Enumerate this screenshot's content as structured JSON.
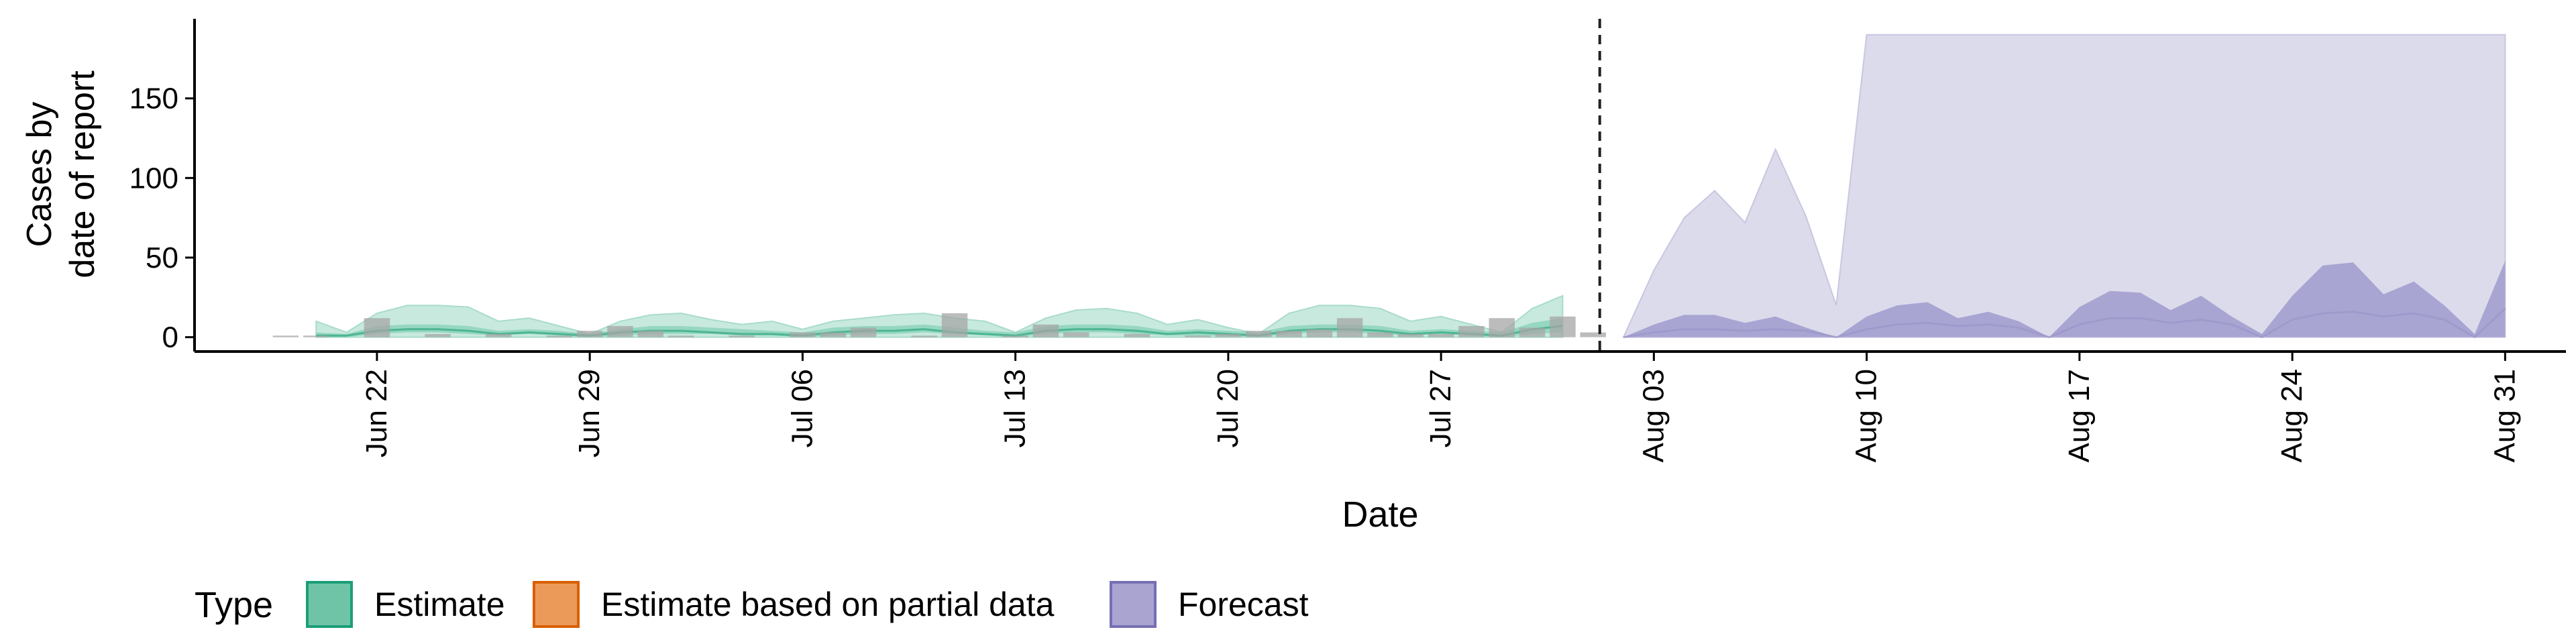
{
  "chart_data": {
    "type": "area",
    "xlabel": "Date",
    "ylabel_lines": [
      "Cases by",
      "date of report"
    ],
    "y_ticks": [
      0,
      50,
      100,
      150
    ],
    "y_range": [
      -9,
      200
    ],
    "x_range": [
      "2020-06-16",
      "2020-09-02"
    ],
    "x_ticks": [
      {
        "date": "2020-06-22",
        "label": "Jun 22"
      },
      {
        "date": "2020-06-29",
        "label": "Jun 29"
      },
      {
        "date": "2020-07-06",
        "label": "Jul 06"
      },
      {
        "date": "2020-07-13",
        "label": "Jul 13"
      },
      {
        "date": "2020-07-20",
        "label": "Jul 20"
      },
      {
        "date": "2020-07-27",
        "label": "Jul 27"
      },
      {
        "date": "2020-08-03",
        "label": "Aug 03"
      },
      {
        "date": "2020-08-10",
        "label": "Aug 10"
      },
      {
        "date": "2020-08-17",
        "label": "Aug 17"
      },
      {
        "date": "2020-08-24",
        "label": "Aug 24"
      },
      {
        "date": "2020-08-31",
        "label": "Aug 31"
      }
    ],
    "forecast_start_marker": "2020-08-01",
    "legend": {
      "position": "bottom",
      "title": "Type",
      "items": [
        {
          "label": "Estimate",
          "fill": "#6fc4a8",
          "stroke": "#1b9e77"
        },
        {
          "label": "Estimate based on partial data",
          "fill": "#ec9a5a",
          "stroke": "#d95f02"
        },
        {
          "label": "Forecast",
          "fill": "#a9a4d0",
          "stroke": "#7570b3"
        }
      ]
    },
    "colors": {
      "estimate_outer": "#c8e9de",
      "estimate_inner": "#8dd3bb",
      "estimate_line": "#1b9e77",
      "forecast_outer": "#dcdbeb",
      "forecast_inner": "#a9a5d2",
      "observed": "#a6a6a6"
    },
    "series": [
      {
        "name": "Estimate",
        "dates": [
          "2020-06-20",
          "2020-06-21",
          "2020-06-22",
          "2020-06-23",
          "2020-06-24",
          "2020-06-25",
          "2020-06-26",
          "2020-06-27",
          "2020-06-28",
          "2020-06-29",
          "2020-06-30",
          "2020-07-01",
          "2020-07-02",
          "2020-07-03",
          "2020-07-04",
          "2020-07-05",
          "2020-07-06",
          "2020-07-07",
          "2020-07-08",
          "2020-07-09",
          "2020-07-10",
          "2020-07-11",
          "2020-07-12",
          "2020-07-13",
          "2020-07-14",
          "2020-07-15",
          "2020-07-16",
          "2020-07-17",
          "2020-07-18",
          "2020-07-19",
          "2020-07-20",
          "2020-07-21",
          "2020-07-22",
          "2020-07-23",
          "2020-07-24",
          "2020-07-25",
          "2020-07-26",
          "2020-07-27",
          "2020-07-28",
          "2020-07-29",
          "2020-07-30",
          "2020-07-31"
        ],
        "median": [
          1,
          1,
          4,
          5,
          5,
          4,
          2,
          3,
          2,
          1,
          3,
          4,
          4,
          3,
          2,
          2,
          1,
          3,
          4,
          4,
          5,
          3,
          2,
          1,
          4,
          5,
          5,
          4,
          2,
          3,
          2,
          1,
          4,
          5,
          5,
          4,
          2,
          3,
          2,
          1,
          5,
          7
        ],
        "lower_50": [
          0,
          0,
          2,
          3,
          3,
          2,
          1,
          2,
          1,
          0,
          1,
          2,
          2,
          2,
          1,
          1,
          0,
          1,
          2,
          2,
          3,
          2,
          1,
          0,
          2,
          3,
          3,
          2,
          1,
          1,
          1,
          0,
          2,
          3,
          3,
          2,
          1,
          2,
          1,
          0,
          2,
          3
        ],
        "upper_50": [
          3,
          2,
          7,
          8,
          8,
          7,
          4,
          5,
          4,
          2,
          5,
          7,
          7,
          6,
          5,
          4,
          3,
          6,
          7,
          7,
          8,
          6,
          4,
          3,
          7,
          8,
          8,
          7,
          4,
          5,
          4,
          3,
          7,
          8,
          8,
          7,
          4,
          5,
          4,
          3,
          9,
          12
        ],
        "lower_90": [
          0,
          0,
          0,
          0,
          0,
          0,
          0,
          0,
          0,
          0,
          0,
          0,
          0,
          0,
          0,
          0,
          0,
          0,
          0,
          0,
          0,
          0,
          0,
          0,
          0,
          0,
          0,
          0,
          0,
          0,
          0,
          0,
          0,
          0,
          0,
          0,
          0,
          0,
          0,
          0,
          0,
          0
        ],
        "upper_90": [
          10,
          3,
          15,
          20,
          20,
          19,
          10,
          12,
          7,
          2,
          10,
          14,
          15,
          11,
          8,
          10,
          5,
          10,
          12,
          14,
          15,
          12,
          10,
          3,
          12,
          17,
          18,
          15,
          8,
          11,
          6,
          2,
          15,
          20,
          20,
          18,
          10,
          13,
          8,
          3,
          18,
          26
        ]
      },
      {
        "name": "Forecast",
        "dates": [
          "2020-08-02",
          "2020-08-03",
          "2020-08-04",
          "2020-08-05",
          "2020-08-06",
          "2020-08-07",
          "2020-08-08",
          "2020-08-09",
          "2020-08-10",
          "2020-08-11",
          "2020-08-12",
          "2020-08-13",
          "2020-08-14",
          "2020-08-15",
          "2020-08-16",
          "2020-08-17",
          "2020-08-18",
          "2020-08-19",
          "2020-08-20",
          "2020-08-21",
          "2020-08-22",
          "2020-08-23",
          "2020-08-24",
          "2020-08-25",
          "2020-08-26",
          "2020-08-27",
          "2020-08-28",
          "2020-08-29",
          "2020-08-30",
          "2020-08-31"
        ],
        "median": [
          0,
          3,
          5,
          5,
          4,
          5,
          4,
          0,
          5,
          8,
          9,
          7,
          8,
          6,
          0,
          8,
          12,
          12,
          9,
          11,
          8,
          0,
          11,
          15,
          16,
          13,
          15,
          11,
          0,
          18
        ],
        "lower_50": [
          0,
          0,
          0,
          0,
          0,
          0,
          0,
          0,
          0,
          0,
          0,
          0,
          0,
          0,
          0,
          0,
          0,
          0,
          0,
          0,
          0,
          0,
          0,
          0,
          0,
          0,
          0,
          0,
          0,
          0
        ],
        "upper_50": [
          0,
          8,
          14,
          14,
          9,
          13,
          6,
          0,
          13,
          20,
          22,
          12,
          16,
          10,
          0,
          19,
          29,
          28,
          17,
          26,
          13,
          2,
          26,
          45,
          47,
          27,
          35,
          20,
          2,
          48
        ],
        "lower_90": [
          0,
          0,
          0,
          0,
          0,
          0,
          0,
          0,
          0,
          0,
          0,
          0,
          0,
          0,
          0,
          0,
          0,
          0,
          0,
          0,
          0,
          0,
          0,
          0,
          0,
          0,
          0,
          0,
          0,
          0
        ],
        "upper_90": [
          0,
          42,
          75,
          92,
          72,
          118,
          76,
          20,
          190,
          190,
          190,
          190,
          190,
          190,
          190,
          190,
          190,
          190,
          190,
          190,
          190,
          190,
          190,
          190,
          190,
          190,
          190,
          190,
          190,
          190
        ]
      }
    ],
    "observed": {
      "dates": [
        "2020-06-19",
        "2020-06-20",
        "2020-06-22",
        "2020-06-24",
        "2020-06-26",
        "2020-06-28",
        "2020-06-29",
        "2020-06-30",
        "2020-07-01",
        "2020-07-02",
        "2020-07-04",
        "2020-07-06",
        "2020-07-07",
        "2020-07-08",
        "2020-07-10",
        "2020-07-11",
        "2020-07-13",
        "2020-07-14",
        "2020-07-15",
        "2020-07-17",
        "2020-07-19",
        "2020-07-20",
        "2020-07-21",
        "2020-07-22",
        "2020-07-23",
        "2020-07-24",
        "2020-07-25",
        "2020-07-26",
        "2020-07-27",
        "2020-07-28",
        "2020-07-29",
        "2020-07-30",
        "2020-07-31",
        "2020-08-01"
      ],
      "values": [
        1,
        1,
        12,
        2,
        2,
        1,
        4,
        7,
        4,
        1,
        1,
        3,
        3,
        6,
        1,
        15,
        1,
        8,
        3,
        2,
        1,
        2,
        4,
        4,
        5,
        12,
        3,
        2,
        2,
        7,
        12,
        6,
        13,
        3
      ]
    }
  }
}
